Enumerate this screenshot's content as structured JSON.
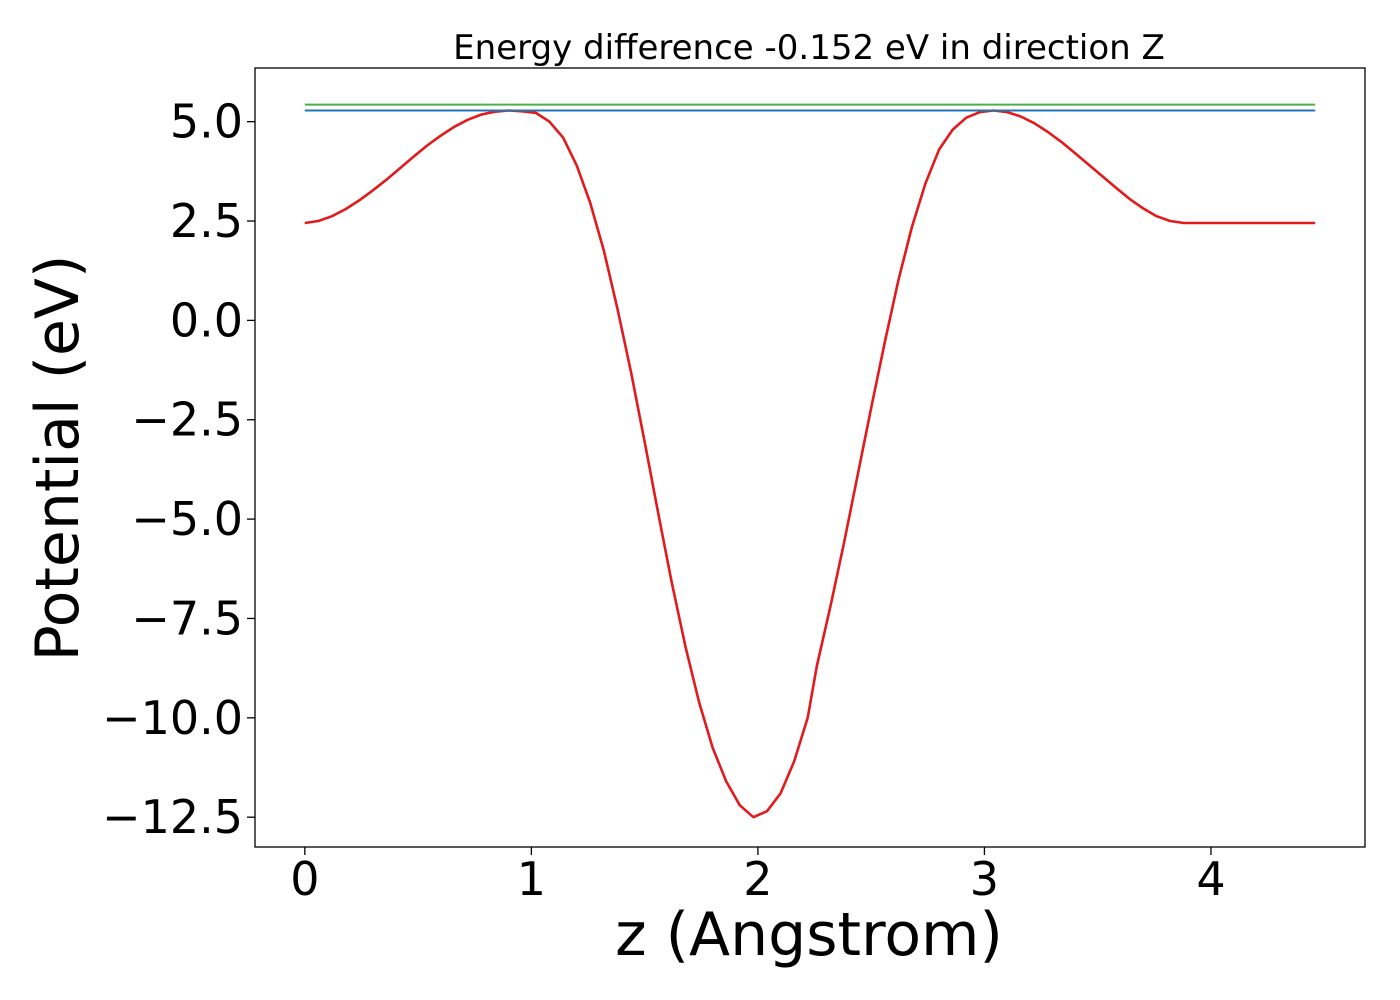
{
  "chart_data": {
    "type": "line",
    "title": "Energy difference -0.152 eV in direction Z",
    "xlabel": "z (Angstrom)",
    "ylabel": "Potential (eV)",
    "xlim": [
      -0.22,
      4.68
    ],
    "ylim": [
      -13.25,
      6.35
    ],
    "xticks": [
      0,
      1,
      2,
      3,
      4
    ],
    "xtick_labels": [
      "0",
      "1",
      "2",
      "3",
      "4"
    ],
    "yticks": [
      5.0,
      2.5,
      0.0,
      -2.5,
      -5.0,
      -7.5,
      -10.0,
      -12.5
    ],
    "ytick_labels": [
      "5.0",
      "2.5",
      "0.0",
      "−2.5",
      "−5.0",
      "−7.5",
      "−10.0",
      "−12.5"
    ],
    "grid": false,
    "series": [
      {
        "color": "#e31a1c",
        "x": [
          0.0,
          0.06,
          0.12,
          0.18,
          0.24,
          0.3,
          0.36,
          0.42,
          0.48,
          0.54,
          0.6,
          0.66,
          0.72,
          0.78,
          0.84,
          0.9,
          0.96,
          1.02,
          1.08,
          1.14,
          1.2,
          1.26,
          1.32,
          1.38,
          1.44,
          1.5,
          1.56,
          1.62,
          1.68,
          1.74,
          1.8,
          1.86,
          1.92,
          1.98,
          2.04,
          2.1,
          2.16,
          2.22,
          2.26,
          2.32,
          2.38,
          2.44,
          2.5,
          2.56,
          2.62,
          2.68,
          2.74,
          2.8,
          2.86,
          2.92,
          2.98,
          3.04,
          3.1,
          3.16,
          3.22,
          3.28,
          3.34,
          3.4,
          3.46,
          3.52,
          3.58,
          3.64,
          3.7,
          3.76,
          3.82,
          3.88,
          3.94,
          4.0,
          4.06,
          4.12,
          4.18,
          4.24,
          4.3,
          4.36,
          4.42,
          4.46
        ],
        "y": [
          2.45,
          2.5,
          2.62,
          2.8,
          3.02,
          3.27,
          3.54,
          3.83,
          4.12,
          4.4,
          4.65,
          4.87,
          5.05,
          5.18,
          5.25,
          5.28,
          5.26,
          5.22,
          5.0,
          4.6,
          3.9,
          2.95,
          1.75,
          0.3,
          -1.3,
          -3.05,
          -4.85,
          -6.6,
          -8.2,
          -9.6,
          -10.75,
          -11.6,
          -12.2,
          -12.5,
          -12.35,
          -11.9,
          -11.1,
          -10.0,
          -8.7,
          -7.2,
          -5.6,
          -3.9,
          -2.2,
          -0.55,
          1.0,
          2.35,
          3.45,
          4.3,
          4.8,
          5.1,
          5.24,
          5.28,
          5.24,
          5.13,
          4.96,
          4.74,
          4.49,
          4.21,
          3.92,
          3.63,
          3.34,
          3.06,
          2.82,
          2.62,
          2.5,
          2.45,
          2.45,
          2.45,
          2.45,
          2.45,
          2.45,
          2.45,
          2.45,
          2.45,
          2.45,
          2.45
        ]
      },
      {
        "color": "#1f77b4",
        "x": [
          0.0,
          4.46
        ],
        "y": [
          5.28,
          5.28
        ]
      },
      {
        "color": "#4daf4a",
        "x": [
          0.0,
          4.46
        ],
        "y": [
          5.43,
          5.43
        ]
      }
    ]
  }
}
